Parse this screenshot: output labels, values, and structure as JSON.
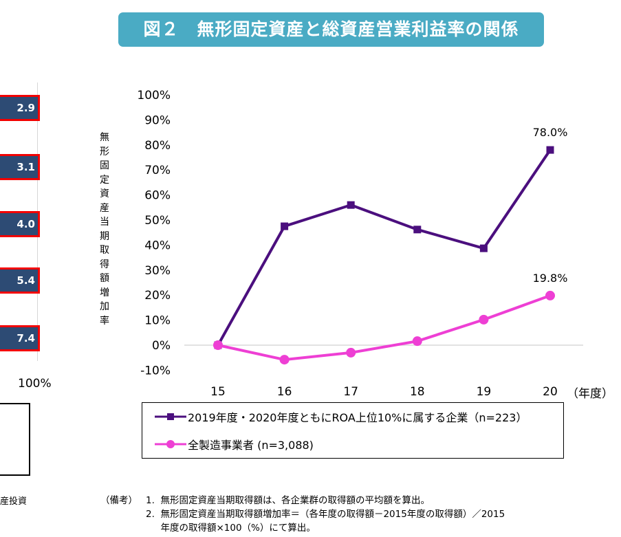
{
  "title": "図２　無形固定資産と総資産営業利益率の関係",
  "left_panel": {
    "bar_labels": [
      "2.9",
      "3.1",
      "4.0",
      "5.4",
      "7.4"
    ],
    "axis_label": "100%",
    "caption": "産投資"
  },
  "chart_data": {
    "type": "line",
    "title": "",
    "ylabel": "無形固定資産当期取得額増加率",
    "xlabel": "（年度）",
    "categories": [
      "15",
      "16",
      "17",
      "18",
      "19",
      "20"
    ],
    "ylim": [
      -10,
      100
    ],
    "yticks": [
      "-10%",
      "0%",
      "10%",
      "20%",
      "30%",
      "40%",
      "50%",
      "60%",
      "70%",
      "80%",
      "90%",
      "100%"
    ],
    "ytick_values": [
      -10,
      0,
      10,
      20,
      30,
      40,
      50,
      60,
      70,
      80,
      90,
      100
    ],
    "grid": false,
    "legend_placement": "bottom",
    "series": [
      {
        "name": "2019年度・2020年度ともにROA上位10%に属する企業（n=223）",
        "values": [
          0,
          47.5,
          56.0,
          46.2,
          38.7,
          78.0
        ],
        "color": "#4b0f7e",
        "marker": "square",
        "end_label": "78.0%"
      },
      {
        "name": "全製造事業者 (n=3,088)",
        "values": [
          0,
          -5.8,
          -3.0,
          1.6,
          10.2,
          19.8
        ],
        "color": "#ee3fd4",
        "marker": "circle",
        "end_label": "19.8%"
      }
    ]
  },
  "notes": {
    "prefix": "（備考）",
    "lines": [
      "1.  無形固定資産当期取得額は、各企業群の取得額の平均額を算出。",
      "2.  無形固定資産当期取得額増加率＝（各年度の取得額－2015年度の取得額）／2015",
      "     年度の取得額×100（%）にて算出。"
    ]
  }
}
